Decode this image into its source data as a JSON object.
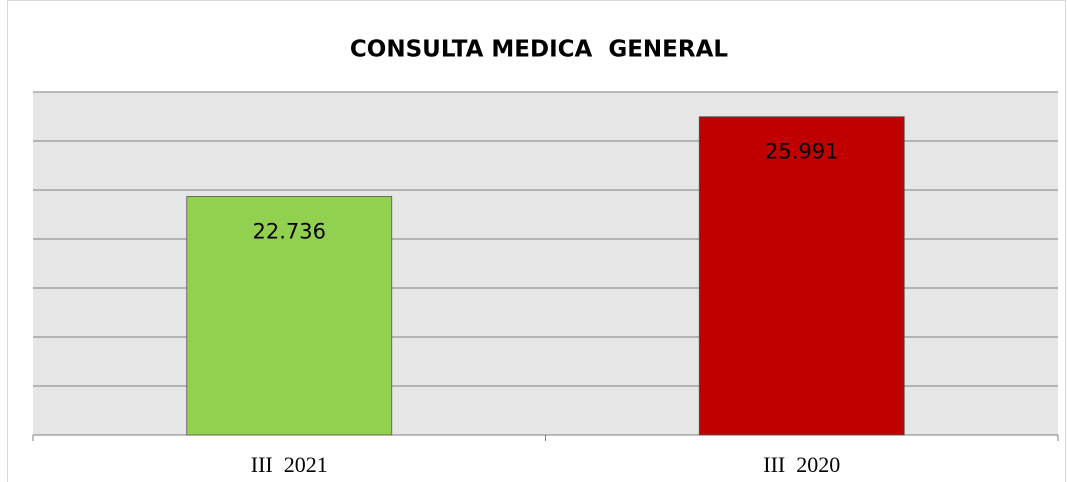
{
  "chart_data": {
    "type": "bar",
    "title": "CONSULTA MEDICA  GENERAL",
    "categories": [
      "III  2021",
      "III  2020"
    ],
    "values": [
      22736,
      25991
    ],
    "value_labels": [
      "22.736",
      "25.991"
    ],
    "colors": [
      "#92d050",
      "#c00000"
    ],
    "ylim": [
      13000,
      27000
    ],
    "yticks": [
      13000,
      15000,
      17000,
      19000,
      21000,
      23000,
      25000,
      27000
    ],
    "show_ytick_labels": false,
    "grid": true
  }
}
